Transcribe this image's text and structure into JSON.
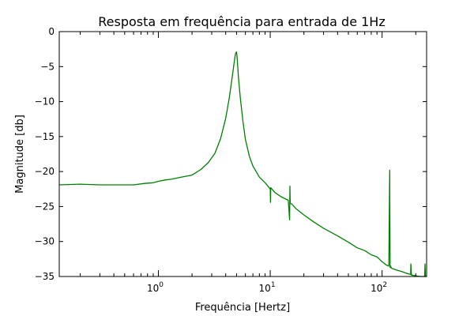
{
  "chart_data": {
    "type": "line",
    "title": "Resposta em frequência para entrada de 1Hz",
    "xlabel": "Frequência [Hertz]",
    "ylabel": "Magnitude [db]",
    "xscale": "log",
    "xlim": [
      0.13,
      250
    ],
    "ylim": [
      -35,
      0
    ],
    "xticks": [
      {
        "value": 1,
        "label": "10",
        "exp": "0"
      },
      {
        "value": 10,
        "label": "10",
        "exp": "1"
      },
      {
        "value": 100,
        "label": "10",
        "exp": "2"
      }
    ],
    "yticks": [
      0,
      -5,
      -10,
      -15,
      -20,
      -25,
      -30,
      -35
    ],
    "grid": false,
    "legend": "none",
    "series": [
      {
        "color": "#008000",
        "x": [
          0.13,
          0.2,
          0.3,
          0.45,
          0.6,
          0.75,
          0.9,
          1.0,
          1.15,
          1.3,
          1.6,
          2.0,
          2.4,
          2.8,
          3.2,
          3.6,
          4.0,
          4.3,
          4.6,
          4.8,
          4.9,
          5.0,
          5.05,
          5.1,
          5.2,
          5.4,
          5.7,
          6.0,
          6.5,
          7.0,
          8.0,
          9.0,
          10.0,
          10.05,
          10.1,
          11.0,
          12.5,
          14.5,
          14.9,
          15.0,
          15.1,
          15.5,
          17.0,
          20.0,
          25.0,
          30.0,
          40.0,
          50.0,
          60.0,
          70.0,
          80.0,
          90.0,
          100.0,
          110.0,
          115.0,
          117.0,
          118.0,
          119.0,
          121.0,
          130.0,
          150.0,
          170.0,
          180.0,
          181.0,
          183.0,
          200.0,
          220.0,
          240.0,
          242.0,
          244.0,
          246.0,
          250.0
        ],
        "y": [
          -21.9,
          -21.8,
          -21.9,
          -21.9,
          -21.9,
          -21.7,
          -21.6,
          -21.4,
          -21.2,
          -21.1,
          -20.8,
          -20.5,
          -19.7,
          -18.7,
          -17.4,
          -15.3,
          -12.4,
          -9.5,
          -6.2,
          -4.0,
          -3.1,
          -2.9,
          -3.5,
          -4.6,
          -6.5,
          -9.5,
          -12.8,
          -15.4,
          -17.8,
          -19.2,
          -20.8,
          -21.6,
          -22.5,
          -24.4,
          -22.3,
          -23.0,
          -23.6,
          -24.1,
          -26.9,
          -22.1,
          -24.6,
          -24.6,
          -25.3,
          -26.2,
          -27.3,
          -28.1,
          -29.2,
          -30.1,
          -30.9,
          -31.3,
          -31.9,
          -32.2,
          -32.9,
          -33.4,
          -33.5,
          -19.8,
          -33.7,
          -33.5,
          -33.8,
          -34.0,
          -34.3,
          -34.6,
          -34.7,
          -33.2,
          -34.8,
          -34.9,
          -35.0,
          -35.0,
          -33.2,
          -35.0,
          -35.0,
          -35.0
        ]
      }
    ]
  }
}
